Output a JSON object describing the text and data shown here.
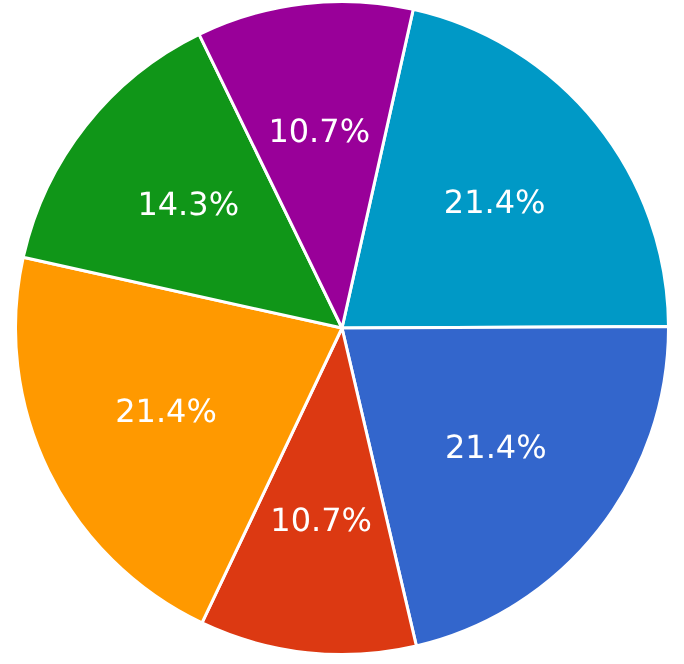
{
  "chart_data": {
    "type": "pie",
    "categories": [
      null,
      null,
      null,
      null,
      null,
      null
    ],
    "values": [
      21.4,
      21.4,
      10.7,
      21.4,
      14.3,
      10.7
    ],
    "colors": [
      "#0099c6",
      "#3366cc",
      "#dc3912",
      "#ff9900",
      "#109618",
      "#990099"
    ],
    "value_labels": [
      "21.4%",
      "21.4%",
      "10.7%",
      "21.4%",
      "14.3%",
      "10.7%"
    ],
    "legend": false
  }
}
